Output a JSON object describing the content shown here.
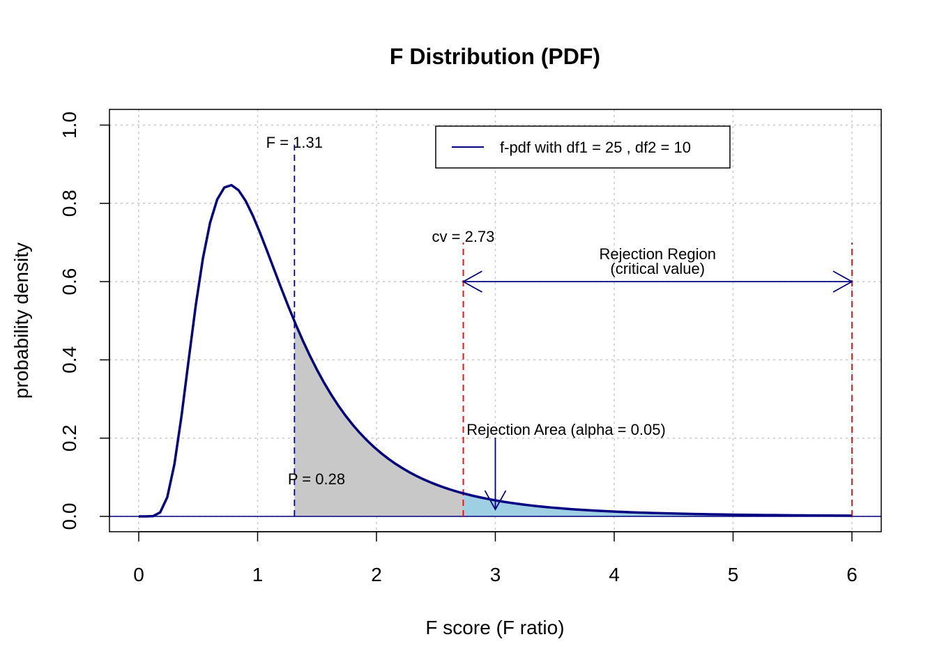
{
  "chart_data": {
    "type": "line",
    "title": "F Distribution (PDF)",
    "xlabel": "F score (F ratio)",
    "ylabel": "probability density",
    "xlim": [
      0,
      6
    ],
    "ylim": [
      0,
      1
    ],
    "x_ticks": [
      "0",
      "1",
      "2",
      "3",
      "4",
      "5",
      "6"
    ],
    "y_ticks": [
      "0.0",
      "0.2",
      "0.4",
      "0.6",
      "0.8",
      "1.0"
    ],
    "grid": true,
    "legend_position": "top-right",
    "series": [
      {
        "name": "f-pdf with df1 = 25 , df2 = 10",
        "color": "#000080",
        "df1": 25,
        "df2": 10
      }
    ],
    "f_statistic": 1.31,
    "critical_value": 2.73,
    "alpha": 0.05,
    "p_value": 0.28,
    "rejection_region": [
      2.73,
      6
    ],
    "annotations": {
      "f_label": "F = 1.31",
      "cv_label": "cv = 2.73",
      "region_label_1": "Rejection Region",
      "region_label_2": "(critical value)",
      "area_label": "Rejection Area (alpha = 0.05)",
      "p_label": "P = 0.28"
    },
    "colors": {
      "curve": "#000080",
      "p_area": "#c8c8c8",
      "rejection_area": "#9ecfe3",
      "cv_lines": "#ff0000",
      "grid": "#c8c8c8"
    }
  }
}
